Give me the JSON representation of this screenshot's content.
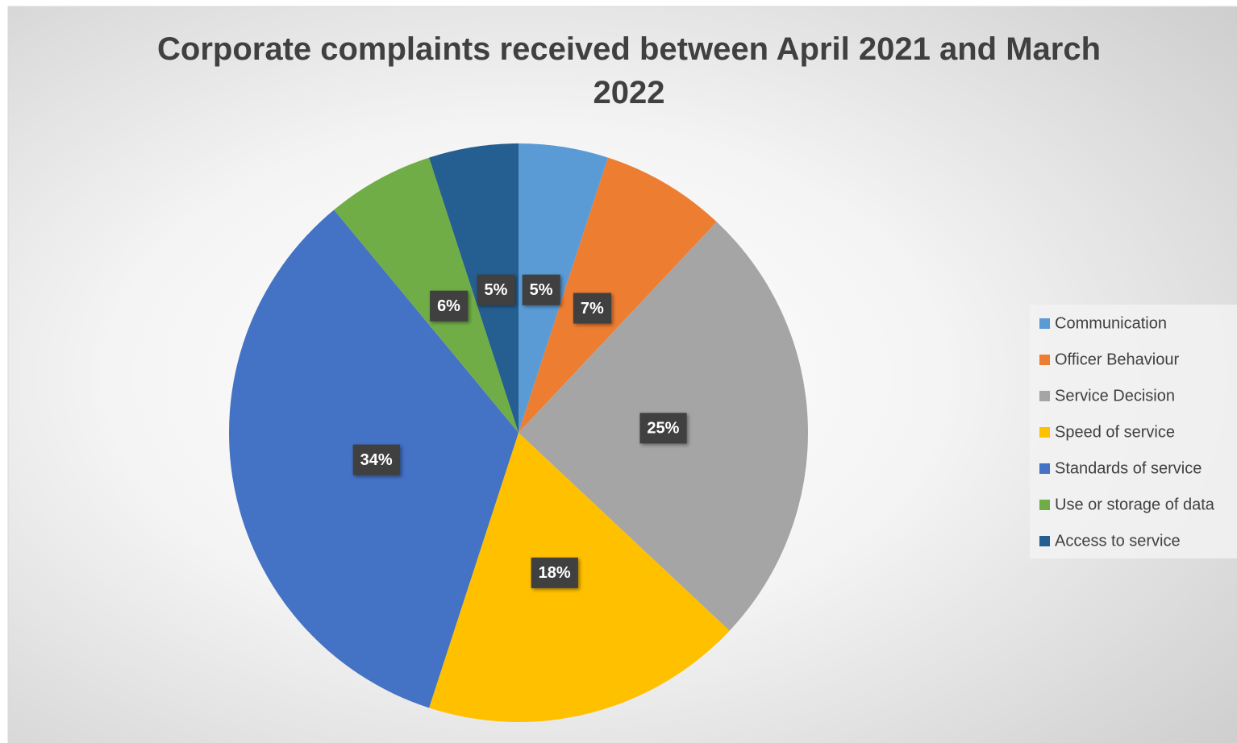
{
  "chart_data": {
    "type": "pie",
    "title": "Corporate complaints received between April 2021 and March 2022",
    "categories": [
      "Communication",
      "Officer Behaviour",
      "Service Decision",
      "Speed of service",
      "Standards of service",
      "Use or storage of data",
      "Access to service"
    ],
    "values": [
      5,
      7,
      25,
      18,
      34,
      6,
      5
    ],
    "value_labels": [
      "5%",
      "7%",
      "25%",
      "18%",
      "34%",
      "6%",
      "5%"
    ],
    "colors": [
      "#5b9bd5",
      "#ed7d31",
      "#a5a5a5",
      "#ffc000",
      "#4472c4",
      "#70ad47",
      "#255e91"
    ],
    "legend": "right"
  }
}
